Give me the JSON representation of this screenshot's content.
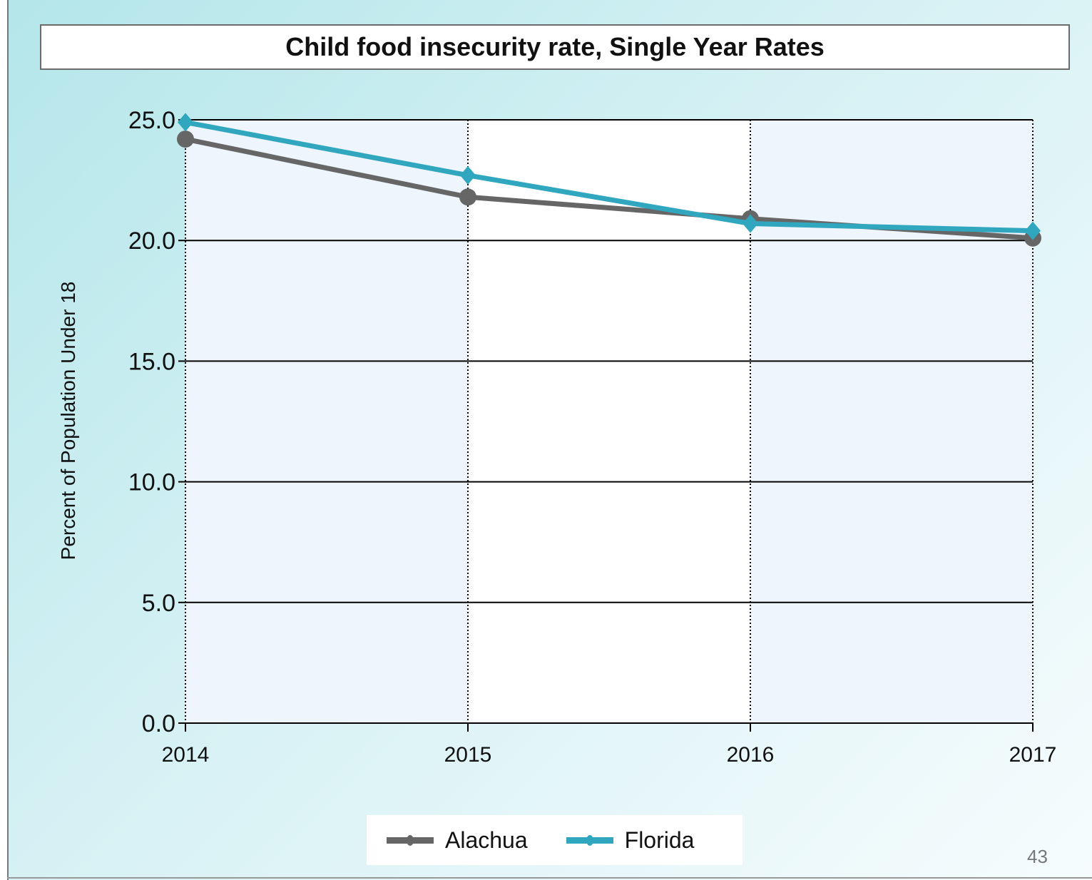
{
  "page_number": "43",
  "chart_data": {
    "type": "line",
    "title": "Child food insecurity rate, Single Year Rates",
    "ylabel": "Percent of Population Under 18",
    "xlabel": "",
    "categories": [
      "2014",
      "2015",
      "2016",
      "2017"
    ],
    "ylim": [
      0,
      25
    ],
    "yticks": [
      "0.0",
      "5.0",
      "10.0",
      "15.0",
      "20.0",
      "25.0"
    ],
    "series": [
      {
        "name": "Alachua",
        "values": [
          24.2,
          21.8,
          20.9,
          20.1
        ],
        "color": "#666666",
        "marker": "circle"
      },
      {
        "name": "Florida",
        "values": [
          24.9,
          22.7,
          20.7,
          20.4
        ],
        "color": "#31a7bf",
        "marker": "diamond"
      }
    ],
    "grid": true,
    "legend": "bottom-center"
  }
}
